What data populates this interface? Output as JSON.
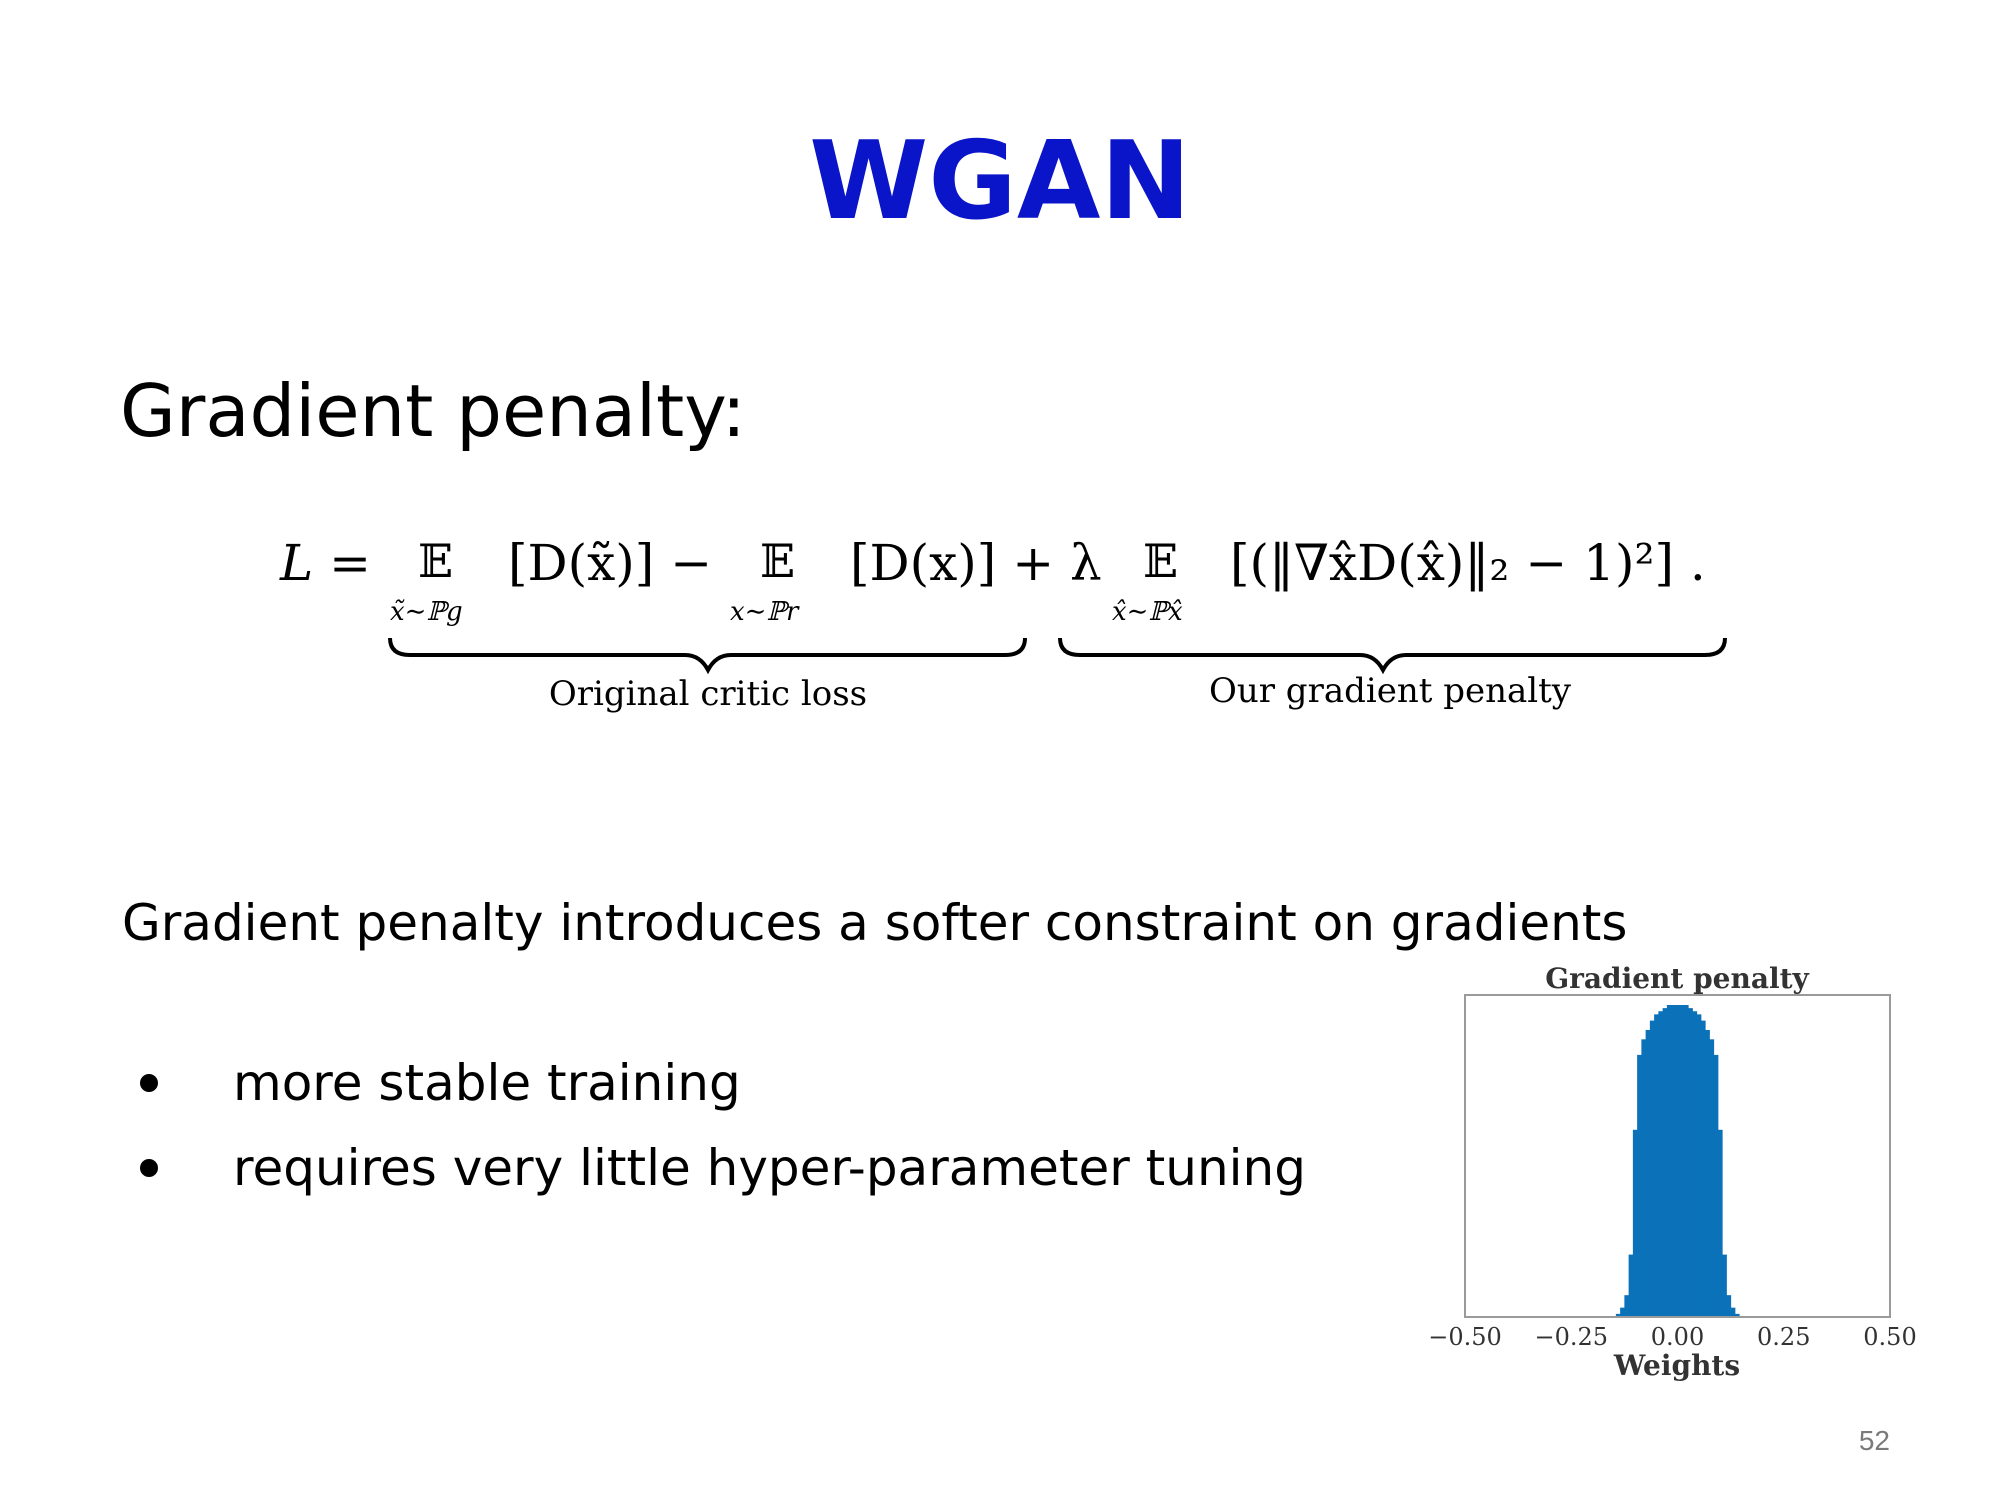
{
  "slide": {
    "title": "WGAN",
    "subtitle": "Gradient penalty:",
    "formula": {
      "lhs": "L =",
      "term1_op": "𝔼",
      "term1_sub": "x̃∼ℙg",
      "term1_body": "[D(x̃)] −",
      "term2_op": "𝔼",
      "term2_sub": "x∼ℙr",
      "term2_body": "[D(x)] + λ",
      "term3_op": "𝔼",
      "term3_sub": "x̂∼ℙx̂",
      "term3_body": "[(‖∇x̂D(x̂)‖₂ − 1)²] .",
      "brace_left_label": "Original critic loss",
      "brace_right_label": "Our gradient penalty"
    },
    "body_text": "Gradient penalty introduces a softer constraint on gradients",
    "bullets": [
      "more stable training",
      "requires very little hyper-parameter tuning"
    ],
    "page_number": "52"
  },
  "chart_data": {
    "type": "bar",
    "title": "Gradient penalty",
    "xlabel": "Weights",
    "ylabel": "",
    "xlim": [
      -0.5,
      0.5
    ],
    "xticks": [
      "−0.50",
      "−0.25",
      "0.00",
      "0.25",
      "0.50"
    ],
    "bar_color": "#0b72b9",
    "x": [
      -0.14,
      -0.13,
      -0.12,
      -0.11,
      -0.1,
      -0.09,
      -0.08,
      -0.07,
      -0.06,
      -0.05,
      -0.04,
      -0.03,
      -0.02,
      -0.01,
      0.0,
      0.01,
      0.02,
      0.03,
      0.04,
      0.05,
      0.06,
      0.07,
      0.08,
      0.09,
      0.1,
      0.11,
      0.12,
      0.13,
      0.14
    ],
    "values": [
      0.01,
      0.03,
      0.07,
      0.2,
      0.6,
      0.84,
      0.89,
      0.92,
      0.95,
      0.97,
      0.98,
      0.99,
      1.0,
      1.0,
      1.0,
      1.0,
      1.0,
      0.99,
      0.98,
      0.97,
      0.95,
      0.92,
      0.89,
      0.84,
      0.6,
      0.2,
      0.07,
      0.03,
      0.01
    ]
  }
}
